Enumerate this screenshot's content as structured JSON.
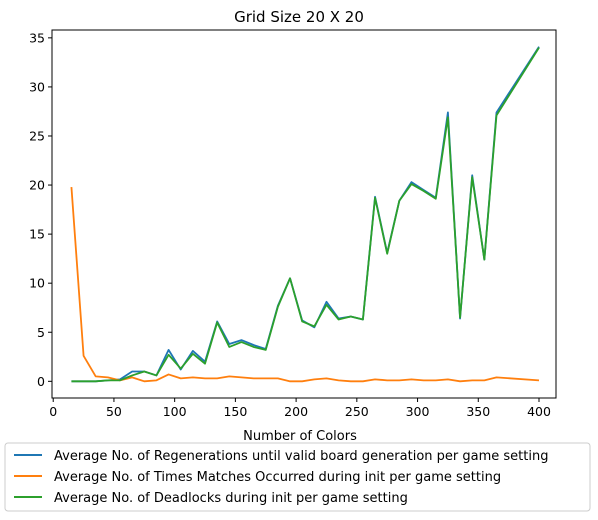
{
  "chart_data": {
    "type": "line",
    "title": "Grid Size 20 X 20",
    "xlabel": "Number of Colors",
    "ylabel": "",
    "xlim": [
      -1,
      414
    ],
    "ylim": [
      -1.7,
      35.8
    ],
    "xticks": [
      0,
      50,
      100,
      150,
      200,
      250,
      300,
      350,
      400
    ],
    "yticks": [
      0,
      5,
      10,
      15,
      20,
      25,
      30,
      35
    ],
    "grid": false,
    "legend_position": "below plot",
    "x": [
      15,
      25,
      35,
      45,
      55,
      65,
      75,
      85,
      95,
      105,
      115,
      125,
      135,
      145,
      155,
      165,
      175,
      185,
      195,
      205,
      215,
      225,
      235,
      245,
      255,
      265,
      275,
      285,
      295,
      305,
      315,
      325,
      335,
      345,
      355,
      365,
      400
    ],
    "series": [
      {
        "name": "Average No. of Regenerations until valid board generation per game setting",
        "color": "#1f77b4",
        "values": [
          0,
          0,
          0,
          0.1,
          0.2,
          1.0,
          1.0,
          0.6,
          3.2,
          1.2,
          3.1,
          2.0,
          6.1,
          3.8,
          4.2,
          3.7,
          3.3,
          7.7,
          10.5,
          6.2,
          5.5,
          8.1,
          6.4,
          6.6,
          6.3,
          18.8,
          13.1,
          18.4,
          20.3,
          19.5,
          18.7,
          27.4,
          6.4,
          21.0,
          12.4,
          27.4,
          34.1
        ]
      },
      {
        "name": "Average No. of Times Matches Occurred during init per game setting",
        "color": "#ff7f0e",
        "values": [
          19.8,
          2.6,
          0.5,
          0.4,
          0.1,
          0.4,
          0.0,
          0.1,
          0.7,
          0.3,
          0.4,
          0.3,
          0.3,
          0.5,
          0.4,
          0.3,
          0.3,
          0.3,
          0.0,
          0.0,
          0.2,
          0.3,
          0.1,
          0.0,
          0.0,
          0.2,
          0.1,
          0.1,
          0.2,
          0.1,
          0.1,
          0.2,
          0.0,
          0.1,
          0.1,
          0.4,
          0.1
        ]
      },
      {
        "name": "Average No. of Deadlocks during init per game setting",
        "color": "#2ca02c",
        "values": [
          0,
          0,
          0,
          0.1,
          0.1,
          0.6,
          1.0,
          0.6,
          2.7,
          1.3,
          2.8,
          1.8,
          6.0,
          3.5,
          4.0,
          3.5,
          3.2,
          7.6,
          10.5,
          6.1,
          5.6,
          7.8,
          6.3,
          6.6,
          6.3,
          18.7,
          13.0,
          18.4,
          20.1,
          19.4,
          18.6,
          26.9,
          6.5,
          20.8,
          12.4,
          27.1,
          34.0
        ]
      }
    ]
  }
}
